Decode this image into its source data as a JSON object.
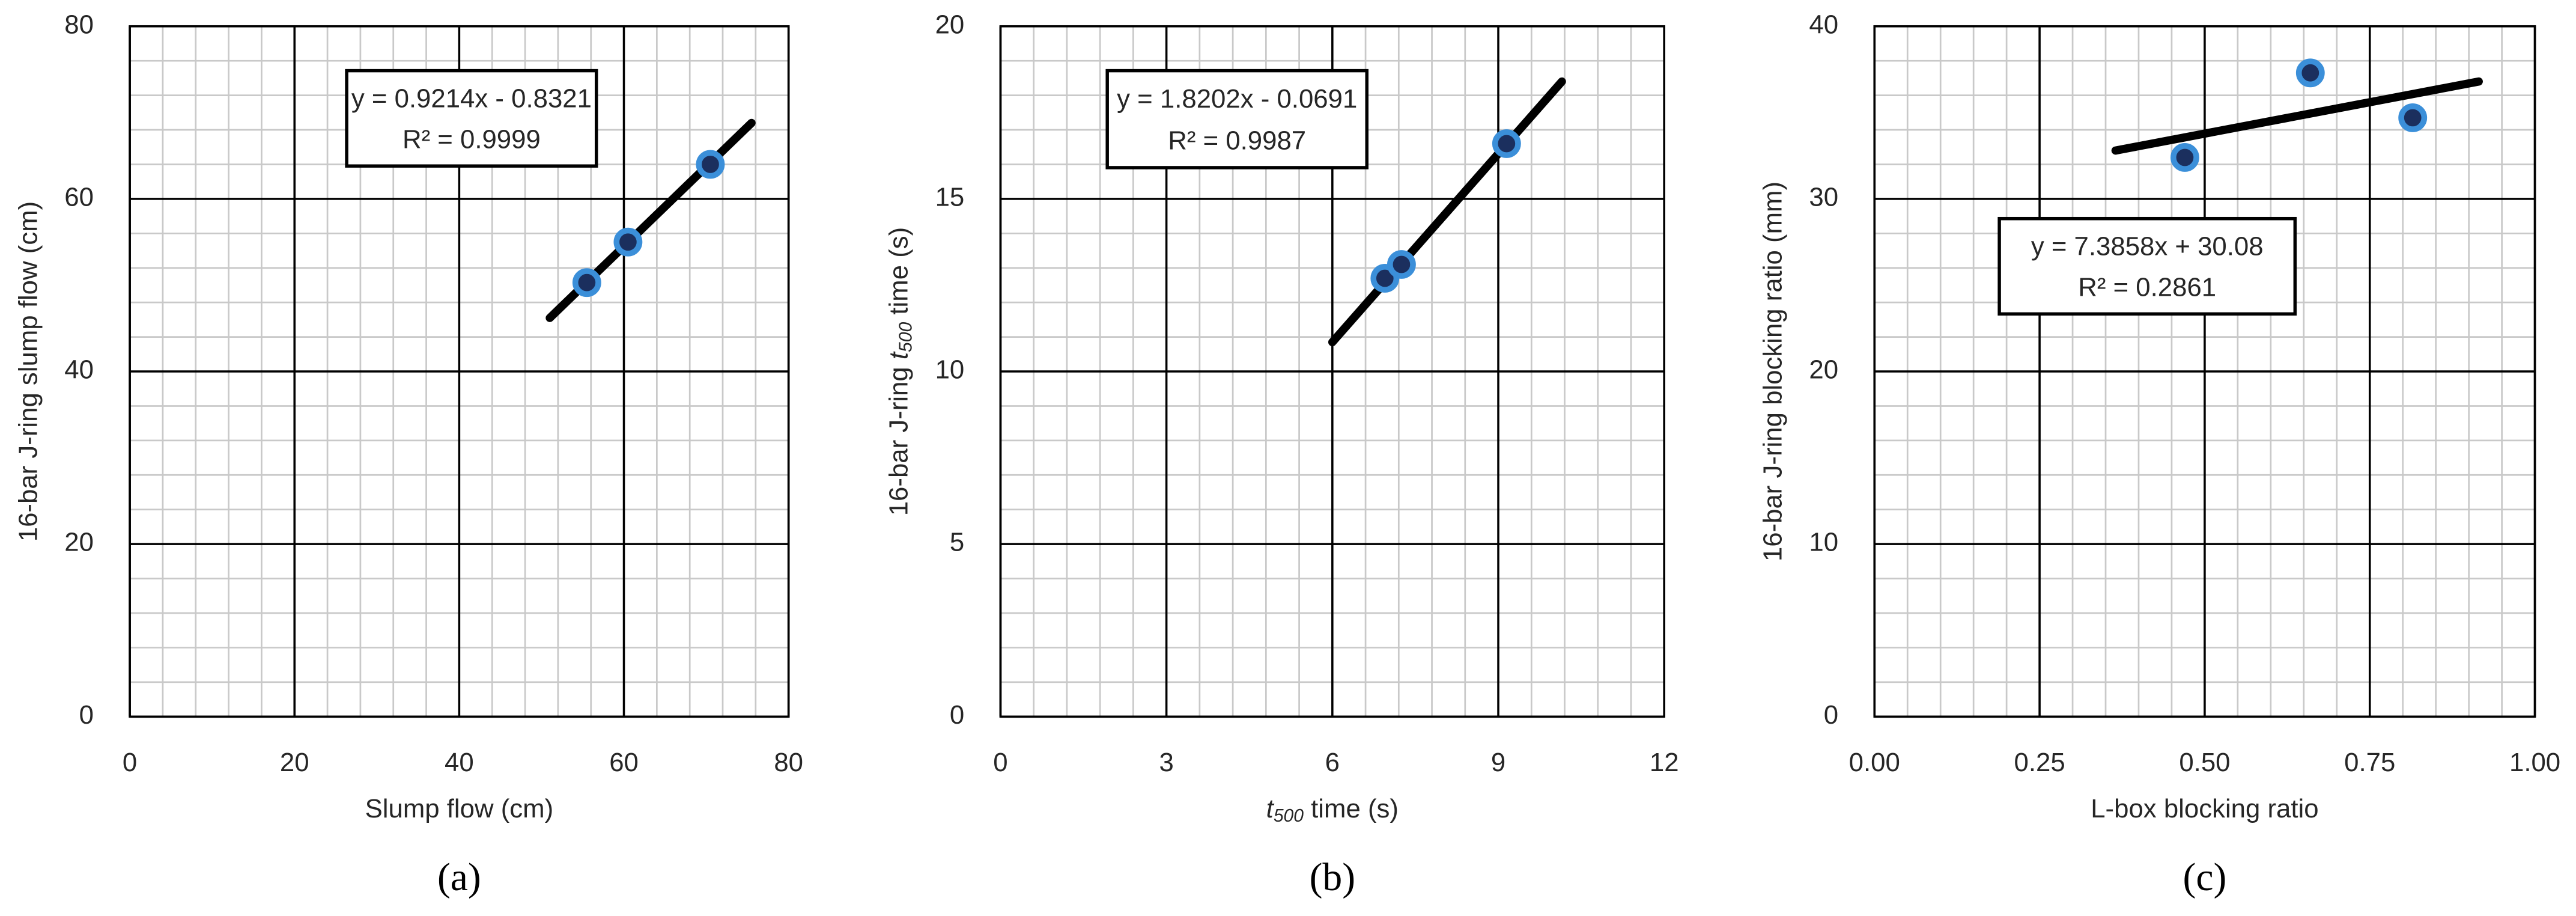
{
  "chart_data": [
    {
      "type": "scatter",
      "caption": "(a)",
      "xlabel": {
        "text": "Slump flow (cm)"
      },
      "ylabel": {
        "text": "16-bar J-ring slump flow (cm)"
      },
      "xlim": [
        0,
        80
      ],
      "xticks": [
        0,
        20,
        40,
        60,
        80
      ],
      "ylim": [
        0,
        80
      ],
      "yticks": [
        0,
        20,
        40,
        60,
        80
      ],
      "grid": true,
      "series": [
        {
          "color": "#3b8fd9",
          "x": [
            55.5,
            60.5,
            70.5
          ],
          "values": [
            50.3,
            55,
            64
          ]
        }
      ],
      "trendline": {
        "x": [
          51,
          75.5
        ],
        "values": [
          46.2,
          68.8
        ],
        "equation": "y = 0.9214x - 0.8321",
        "r_squared": "R² = 0.9999"
      }
    },
    {
      "type": "scatter",
      "caption": "(b)",
      "xlabel": {
        "italic": "t",
        "sub": "500",
        "text": " time (s)"
      },
      "ylabel": {
        "prefix": "16-bar J-ring ",
        "italic": "t",
        "sub": "500",
        "text": " time (s)"
      },
      "xlim": [
        0,
        12
      ],
      "xticks": [
        0,
        3,
        6,
        9,
        12
      ],
      "ylim": [
        0,
        20
      ],
      "yticks": [
        0,
        5,
        10,
        15,
        20
      ],
      "grid": true,
      "series": [
        {
          "color": "#3b8fd9",
          "x": [
            6.95,
            7.25,
            9.15
          ],
          "values": [
            12.7,
            13.1,
            16.6
          ]
        }
      ],
      "trendline": {
        "x": [
          6,
          10.15
        ],
        "values": [
          10.85,
          18.4
        ],
        "equation": "y = 1.8202x - 0.0691",
        "r_squared": "R² = 0.9987"
      }
    },
    {
      "type": "scatter",
      "caption": "(c)",
      "xlabel": {
        "text": "L-box blocking ratio"
      },
      "ylabel": {
        "text": "16-bar J-ring blocking ratio (mm)"
      },
      "xlim": [
        0,
        1
      ],
      "xticks": [
        {
          "value": 0,
          "label": "0.00"
        },
        {
          "value": 0.25,
          "label": "0.25"
        },
        {
          "value": 0.5,
          "label": "0.50"
        },
        {
          "value": 0.75,
          "label": "0.75"
        },
        {
          "value": 1,
          "label": "1.00"
        }
      ],
      "ylim": [
        0,
        40
      ],
      "yticks": [
        0,
        10,
        20,
        30,
        40
      ],
      "grid": true,
      "series": [
        {
          "color": "#3b8fd9",
          "x": [
            0.47,
            0.66,
            0.815
          ],
          "values": [
            32.4,
            37.3,
            34.7
          ]
        }
      ],
      "trendline": {
        "x": [
          0.365,
          0.915
        ],
        "values": [
          32.8,
          36.8
        ],
        "equation": "y = 7.3858x + 30.08",
        "r_squared": "R² = 0.2861"
      }
    }
  ]
}
